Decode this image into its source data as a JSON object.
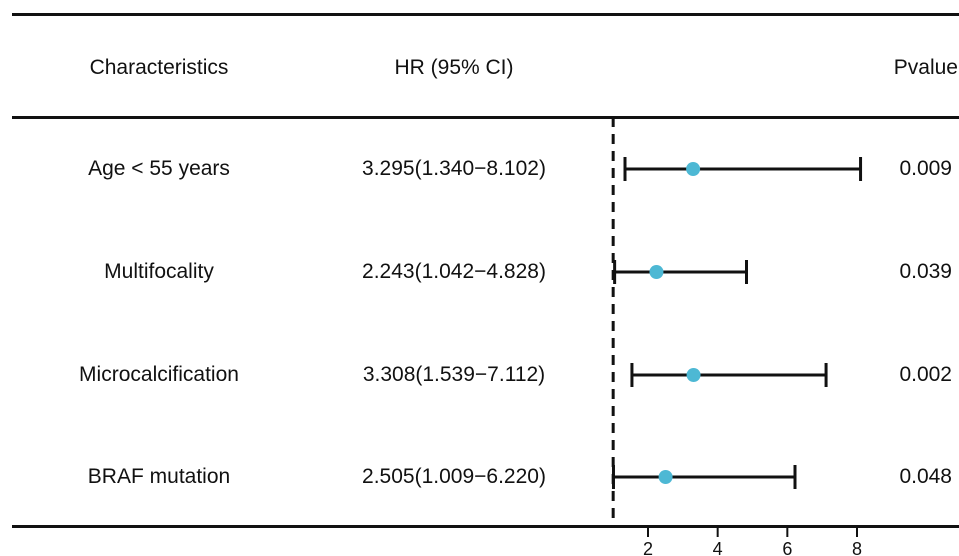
{
  "header": {
    "col_characteristics": "Characteristics",
    "col_hr": "HR (95% CI)",
    "col_pvalue": "Pvalue"
  },
  "rows": [
    {
      "label": "Age < 55 years",
      "hr_text": "3.295(1.340−8.102)",
      "pvalue": "0.009"
    },
    {
      "label": "Multifocality",
      "hr_text": "2.243(1.042−4.828)",
      "pvalue": "0.039"
    },
    {
      "label": "Microcalcification",
      "hr_text": "3.308(1.539−7.112)",
      "pvalue": "0.002"
    },
    {
      "label": "BRAF mutation",
      "hr_text": "2.505(1.009−6.220)",
      "pvalue": "0.048"
    }
  ],
  "colors": {
    "point": "#4db8d4",
    "line": "#111111"
  },
  "chart_data": {
    "type": "forest",
    "categories": [
      "Age < 55 years",
      "Multifocality",
      "Microcalcification",
      "BRAF mutation"
    ],
    "series": [
      {
        "hr": 3.295,
        "lower": 1.34,
        "upper": 8.102
      },
      {
        "hr": 2.243,
        "lower": 1.042,
        "upper": 4.828
      },
      {
        "hr": 3.308,
        "lower": 1.539,
        "upper": 7.112
      },
      {
        "hr": 2.505,
        "lower": 1.009,
        "upper": 6.22
      }
    ],
    "reference_line": 1,
    "x_ticks": [
      2,
      4,
      6,
      8
    ],
    "xlim": [
      0.7,
      9.0
    ]
  }
}
